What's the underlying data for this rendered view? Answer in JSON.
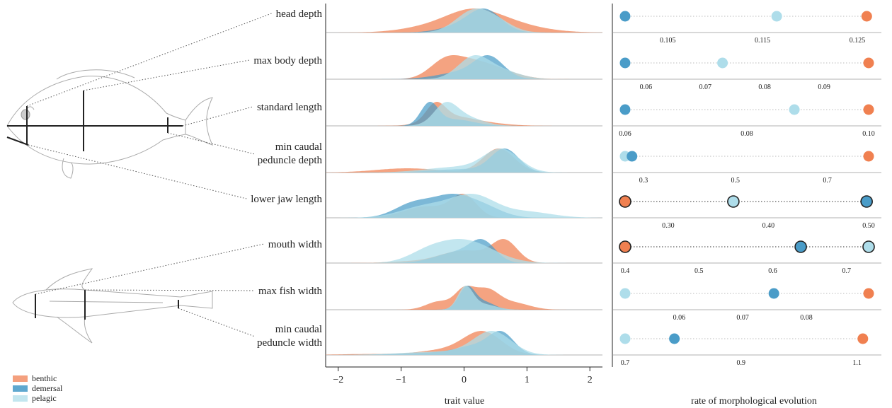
{
  "colors": {
    "benthic": "#F08050",
    "demersal": "#4A9CC8",
    "pelagic": "#AEDDEA"
  },
  "legend": [
    {
      "name": "benthic",
      "color": "#F08050"
    },
    {
      "name": "demersal",
      "color": "#4A9CC8"
    },
    {
      "name": "pelagic",
      "color": "#AEDDEA"
    }
  ],
  "chart_data": [
    {
      "type": "area",
      "subtype": "ridgeline-density",
      "xlabel": "trait value",
      "xlim": [
        -2.2,
        2.2
      ],
      "xticks": [
        "−2",
        "−1",
        "0",
        "1",
        "2"
      ],
      "traits": [
        {
          "label_lines": [
            "head depth"
          ],
          "series": {
            "benthic": [
              [
                -0.6,
                0.15,
                0.45
              ],
              [
                0.1,
                0.45,
                0.4
              ],
              [
                0.4,
                0.55,
                0.6
              ]
            ],
            "demersal": [
              [
                0.35,
                0.9,
                0.25
              ],
              [
                0.05,
                0.4,
                0.35
              ]
            ],
            "pelagic": [
              [
                0.15,
                0.8,
                0.28
              ],
              [
                0.55,
                0.3,
                0.25
              ]
            ]
          }
        },
        {
          "label_lines": [
            "max body depth"
          ],
          "series": {
            "benthic": [
              [
                -0.3,
                0.7,
                0.25
              ],
              [
                0.1,
                0.5,
                0.3
              ],
              [
                0.5,
                0.35,
                0.35
              ]
            ],
            "demersal": [
              [
                0.4,
                0.95,
                0.23
              ],
              [
                0.0,
                0.35,
                0.4
              ]
            ],
            "pelagic": [
              [
                0.15,
                0.82,
                0.25
              ],
              [
                0.6,
                0.3,
                0.3
              ]
            ]
          }
        },
        {
          "label_lines": [
            "standard length"
          ],
          "series": {
            "benthic": [
              [
                -0.45,
                0.85,
                0.15
              ],
              [
                -0.2,
                0.45,
                0.35
              ],
              [
                0.4,
                0.1,
                0.35
              ]
            ],
            "demersal": [
              [
                -0.55,
                1.0,
                0.14
              ],
              [
                -0.15,
                0.3,
                0.3
              ]
            ],
            "pelagic": [
              [
                -0.3,
                0.6,
                0.18
              ],
              [
                -0.05,
                0.35,
                0.3
              ]
            ]
          }
        },
        {
          "label_lines": [
            "min caudal",
            "peduncle depth"
          ],
          "series": {
            "benthic": [
              [
                -0.9,
                0.15,
                0.5
              ],
              [
                0.55,
                0.85,
                0.25
              ]
            ],
            "demersal": [
              [
                0.65,
                1.0,
                0.22
              ],
              [
                0.0,
                0.15,
                0.5
              ]
            ],
            "pelagic": [
              [
                0.6,
                0.8,
                0.28
              ],
              [
                -0.1,
                0.2,
                0.5
              ]
            ]
          }
        },
        {
          "label_lines": [
            "lower jaw length"
          ],
          "series": {
            "benthic": [
              [
                0.0,
                0.85,
                0.2
              ],
              [
                -0.6,
                0.45,
                0.35
              ]
            ],
            "demersal": [
              [
                -0.8,
                0.4,
                0.3
              ],
              [
                -0.2,
                0.55,
                0.3
              ],
              [
                0.3,
                0.3,
                0.3
              ]
            ],
            "pelagic": [
              [
                0.15,
                0.55,
                0.35
              ],
              [
                -0.6,
                0.3,
                0.4
              ],
              [
                1.0,
                0.15,
                0.4
              ]
            ]
          }
        },
        {
          "label_lines": [
            "mouth width"
          ],
          "series": {
            "benthic": [
              [
                0.65,
                0.9,
                0.2
              ],
              [
                0.0,
                0.55,
                0.4
              ],
              [
                -1.0,
                0.05,
                0.3
              ]
            ],
            "demersal": [
              [
                0.3,
                0.85,
                0.2
              ],
              [
                -0.1,
                0.5,
                0.35
              ]
            ],
            "pelagic": [
              [
                0.0,
                0.65,
                0.45
              ],
              [
                -0.6,
                0.2,
                0.3
              ]
            ]
          }
        },
        {
          "label_lines": [
            "max fish width"
          ],
          "series": {
            "benthic": [
              [
                0.35,
                0.6,
                0.2
              ],
              [
                0.0,
                0.55,
                0.15
              ],
              [
                -0.4,
                0.25,
                0.2
              ],
              [
                0.8,
                0.2,
                0.25
              ]
            ],
            "demersal": [
              [
                0.05,
                1.0,
                0.13
              ],
              [
                0.35,
                0.3,
                0.15
              ]
            ],
            "pelagic": [
              [
                0.02,
                1.0,
                0.12
              ],
              [
                0.3,
                0.25,
                0.2
              ]
            ]
          }
        },
        {
          "label_lines": [
            "min caudal",
            "peduncle width"
          ],
          "series": {
            "benthic": [
              [
                0.3,
                0.7,
                0.3
              ],
              [
                -0.3,
                0.15,
                0.4
              ],
              [
                -1.5,
                0.03,
                0.5
              ]
            ],
            "demersal": [
              [
                0.6,
                0.95,
                0.2
              ],
              [
                0.2,
                0.4,
                0.3
              ],
              [
                -0.5,
                0.1,
                0.5
              ]
            ],
            "pelagic": [
              [
                0.45,
                0.85,
                0.3
              ],
              [
                -0.4,
                0.12,
                0.6
              ]
            ]
          }
        }
      ]
    },
    {
      "type": "scatter",
      "subtype": "dot-strip",
      "xlabel": "rate of morphological evolution",
      "traits": [
        {
          "label_lines": [
            "head depth"
          ],
          "xlim": [
            0.1005,
            0.1262
          ],
          "ticks": [
            0.105,
            0.115,
            0.125
          ],
          "tick_labels": [
            "0.105",
            "0.115",
            "0.125"
          ],
          "points": {
            "demersal": 0.1005,
            "pelagic": 0.1165,
            "benthic": 0.126
          }
        },
        {
          "label_lines": [
            "max body depth"
          ],
          "xlim": [
            0.0565,
            0.0975
          ],
          "ticks": [
            0.06,
            0.07,
            0.08,
            0.09
          ],
          "tick_labels": [
            "0.06",
            "0.07",
            "0.08",
            "0.09"
          ],
          "points": {
            "demersal": 0.0565,
            "pelagic": 0.0729,
            "benthic": 0.0975
          }
        },
        {
          "label_lines": [
            "standard length"
          ],
          "xlim": [
            0.06,
            0.1
          ],
          "ticks": [
            0.06,
            0.08,
            0.1
          ],
          "tick_labels": [
            "0.06",
            "0.08",
            "0.10"
          ],
          "points": {
            "demersal": 0.06,
            "pelagic": 0.0878,
            "benthic": 0.1
          }
        },
        {
          "label_lines": [
            "min caudal",
            "peduncle depth"
          ],
          "xlim": [
            0.26,
            0.79
          ],
          "ticks": [
            0.3,
            0.5,
            0.7
          ],
          "tick_labels": [
            "0.3",
            "0.5",
            "0.7"
          ],
          "points": {
            "pelagic": 0.26,
            "demersal": 0.275,
            "benthic": 0.79
          }
        },
        {
          "label_lines": [
            "lower jaw length"
          ],
          "xlim": [
            0.257,
            0.5
          ],
          "ticks": [
            0.3,
            0.4,
            0.5
          ],
          "tick_labels": [
            "0.30",
            "0.40",
            "0.50"
          ],
          "outlined": true,
          "points": {
            "benthic": 0.257,
            "pelagic": 0.365,
            "demersal": 0.498
          }
        },
        {
          "label_lines": [
            "mouth width"
          ],
          "xlim": [
            0.4,
            0.73
          ],
          "ticks": [
            0.4,
            0.5,
            0.6,
            0.7
          ],
          "tick_labels": [
            "0.4",
            "0.5",
            "0.6",
            "0.7"
          ],
          "outlined": true,
          "points": {
            "benthic": 0.4,
            "demersal": 0.638,
            "pelagic": 0.73
          }
        },
        {
          "label_lines": [
            "max fish width"
          ],
          "xlim": [
            0.0515,
            0.0898
          ],
          "ticks": [
            0.06,
            0.07,
            0.08
          ],
          "tick_labels": [
            "0.06",
            "0.07",
            "0.08"
          ],
          "points": {
            "pelagic": 0.0515,
            "demersal": 0.0749,
            "benthic": 0.0898
          }
        },
        {
          "label_lines": [
            "min caudal",
            "peduncle width"
          ],
          "xlim": [
            0.7,
            1.12
          ],
          "ticks": [
            0.7,
            0.9,
            1.1
          ],
          "tick_labels": [
            "0.7",
            "0.9",
            "1.1"
          ],
          "points": {
            "pelagic": 0.7,
            "demersal": 0.785,
            "benthic": 1.11
          }
        }
      ]
    }
  ]
}
